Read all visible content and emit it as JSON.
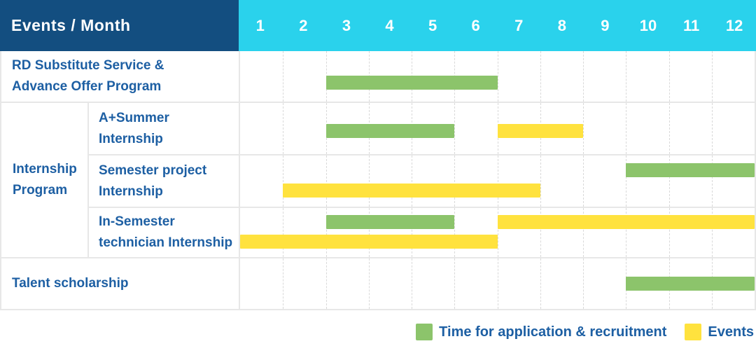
{
  "colors": {
    "header_navy": "#134e80",
    "header_cyan": "#2ad2ec",
    "label_blue": "#1d5fa3",
    "bar_green": "#8cc46b",
    "bar_yellow": "#ffe23e",
    "grid_line": "#e7e7e7"
  },
  "header": {
    "title": "Events / Month"
  },
  "labels": {
    "rd": {
      "line1": "RD Substitute Service &",
      "line2": "Advance Offer Program"
    },
    "group": {
      "line1": "Internship",
      "line2": "Program"
    },
    "sub1": {
      "line1": "A+Summer",
      "line2": "Internship"
    },
    "sub2": {
      "line1": "Semester project",
      "line2": "Internship"
    },
    "sub3": {
      "line1": "In-Semester",
      "line2": "technician Internship"
    },
    "talent": {
      "line1": "Talent scholarship"
    }
  },
  "legend": {
    "application": "Time for application & recruitment",
    "events": "Events"
  },
  "chart_data": {
    "type": "bar",
    "subtype": "gantt-timeline",
    "title": "Events / Month",
    "xlabel": "Month",
    "x_ticks": [
      "1",
      "2",
      "3",
      "4",
      "5",
      "6",
      "7",
      "8",
      "9",
      "10",
      "11",
      "12"
    ],
    "x_range": [
      1,
      12
    ],
    "grid": true,
    "legend_position": "bottom-right",
    "series_legend": [
      {
        "key": "application",
        "name": "Time for application & recruitment",
        "color": "#8cc46b"
      },
      {
        "key": "events",
        "name": "Events",
        "color": "#ffe23e"
      }
    ],
    "rows": [
      {
        "category": "RD Substitute Service & Advance Offer Program",
        "group": "",
        "bars": [
          {
            "series": "application",
            "start_month": 3,
            "end_month": 6,
            "lane": 0
          }
        ]
      },
      {
        "category": "A+Summer Internship",
        "group": "Internship Program",
        "bars": [
          {
            "series": "application",
            "start_month": 3,
            "end_month": 5,
            "lane": 0
          },
          {
            "series": "events",
            "start_month": 7,
            "end_month": 8,
            "lane": 0
          }
        ]
      },
      {
        "category": "Semester project Internship",
        "group": "Internship Program",
        "bars": [
          {
            "series": "application",
            "start_month": 10,
            "end_month": 12,
            "lane": 0
          },
          {
            "series": "events",
            "start_month": 2,
            "end_month": 7,
            "lane": 1
          }
        ]
      },
      {
        "category": "In-Semester technician Internship",
        "group": "Internship Program",
        "bars": [
          {
            "series": "application",
            "start_month": 3,
            "end_month": 5,
            "lane": 0
          },
          {
            "series": "events",
            "start_month": 7,
            "end_month": 12,
            "lane": 0
          },
          {
            "series": "events",
            "start_month": 1,
            "end_month": 6,
            "lane": 1
          }
        ]
      },
      {
        "category": "Talent scholarship",
        "group": "",
        "bars": [
          {
            "series": "application",
            "start_month": 10,
            "end_month": 12,
            "lane": 0
          }
        ]
      }
    ]
  }
}
